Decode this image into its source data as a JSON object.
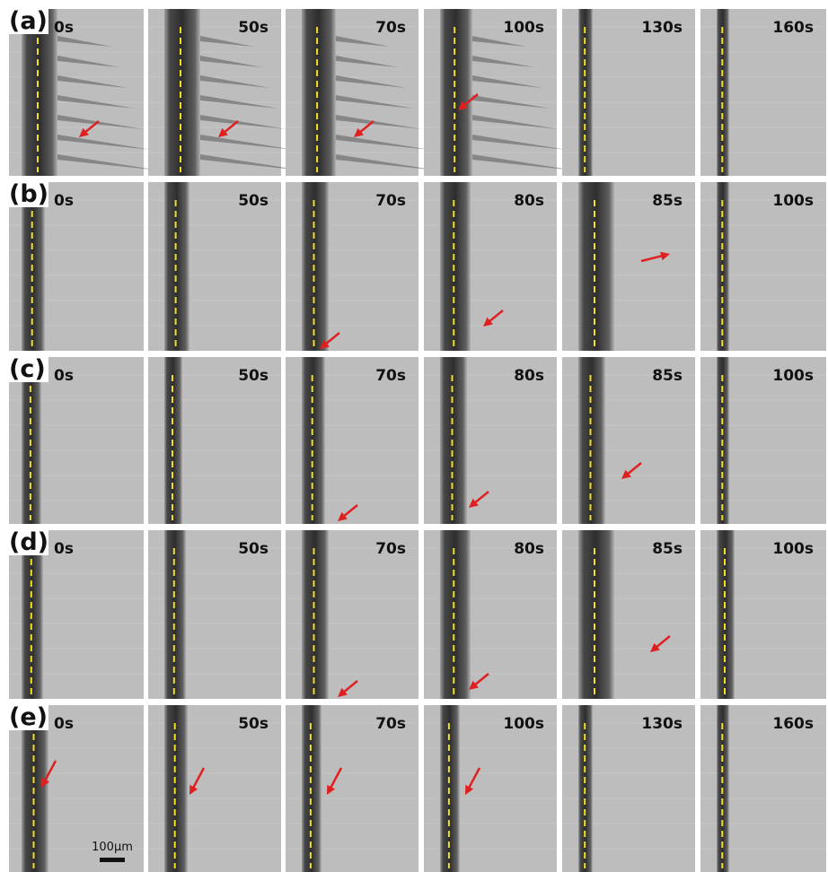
{
  "rows": [
    {
      "label": "(a)",
      "times": [
        "0s",
        "50s",
        "70s",
        "100s",
        "130s",
        "160s"
      ]
    },
    {
      "label": "(b)",
      "times": [
        "0s",
        "50s",
        "70s",
        "80s",
        "85s",
        "100s"
      ]
    },
    {
      "label": "(c)",
      "times": [
        "0s",
        "50s",
        "70s",
        "80s",
        "85s",
        "100s"
      ]
    },
    {
      "label": "(d)",
      "times": [
        "0s",
        "50s",
        "70s",
        "80s",
        "85s",
        "100s"
      ]
    },
    {
      "label": "(e)",
      "times": [
        "0s",
        "50s",
        "70s",
        "100s",
        "130s",
        "160s"
      ]
    }
  ],
  "scale_bar": "100μm"
}
